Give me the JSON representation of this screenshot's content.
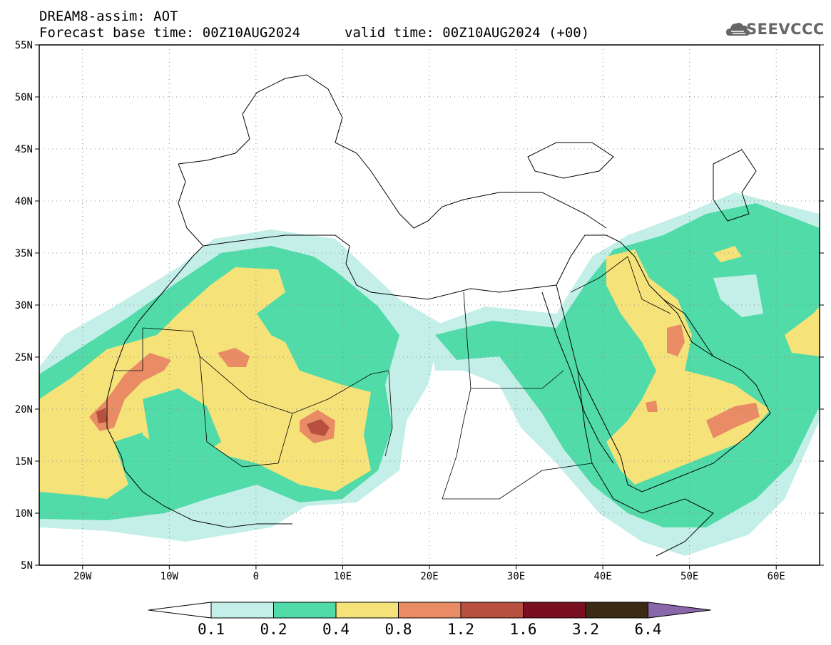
{
  "header": {
    "title_line1": "DREAM8-assim: AOT",
    "base_time": "Forecast base time: 00Z10AUG2024",
    "valid_time": "valid time: 00Z10AUG2024 (+00)"
  },
  "logo": {
    "text": "SEEVCCC",
    "icon": "cloud-icon"
  },
  "map": {
    "lon_range": [
      -25,
      65
    ],
    "lat_range": [
      5,
      55
    ],
    "lat_ticks": [
      {
        "value": 55,
        "label": "55N"
      },
      {
        "value": 50,
        "label": "50N"
      },
      {
        "value": 45,
        "label": "45N"
      },
      {
        "value": 40,
        "label": "40N"
      },
      {
        "value": 35,
        "label": "35N"
      },
      {
        "value": 30,
        "label": "30N"
      },
      {
        "value": 25,
        "label": "25N"
      },
      {
        "value": 20,
        "label": "20N"
      },
      {
        "value": 15,
        "label": "15N"
      },
      {
        "value": 10,
        "label": "10N"
      },
      {
        "value": 5,
        "label": "5N"
      }
    ],
    "lon_ticks": [
      {
        "value": -20,
        "label": "20W"
      },
      {
        "value": -10,
        "label": "10W"
      },
      {
        "value": 0,
        "label": "0"
      },
      {
        "value": 10,
        "label": "10E"
      },
      {
        "value": 20,
        "label": "20E"
      },
      {
        "value": 30,
        "label": "30E"
      },
      {
        "value": 40,
        "label": "40E"
      },
      {
        "value": 50,
        "label": "50E"
      },
      {
        "value": 60,
        "label": "60E"
      }
    ],
    "grid": "dotted"
  },
  "colorbar": {
    "labels": [
      "0.1",
      "0.2",
      "0.4",
      "0.8",
      "1.2",
      "1.6",
      "3.2",
      "6.4"
    ],
    "colors": [
      "#ffffff",
      "#c4efe9",
      "#50dba9",
      "#f5e37a",
      "#e98c66",
      "#b8503f",
      "#7a0f22",
      "#3c2a15",
      "#8a66aa"
    ]
  }
}
